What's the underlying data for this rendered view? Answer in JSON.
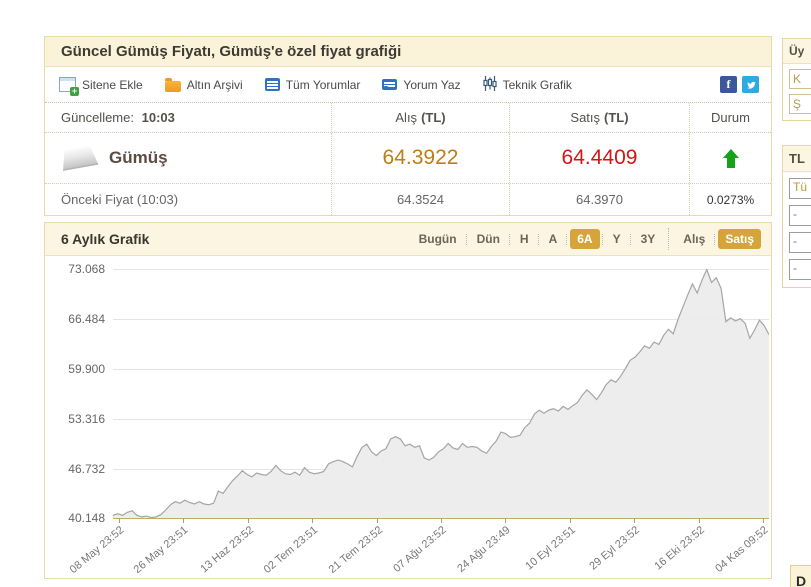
{
  "header": {
    "title": "Güncel Gümüş Fiyatı, Gümüş'e özel fiyat grafiği"
  },
  "toolbar": {
    "items": [
      {
        "label": "Sitene Ekle",
        "icon": "add-to-site-icon"
      },
      {
        "label": "Altın Arşivi",
        "icon": "gold-archive-icon"
      },
      {
        "label": "Tüm Yorumlar",
        "icon": "all-comments-icon"
      },
      {
        "label": "Yorum Yaz",
        "icon": "write-comment-icon"
      },
      {
        "label": "Teknik Grafik",
        "icon": "technical-chart-icon"
      }
    ],
    "social": [
      "facebook",
      "twitter"
    ],
    "facebook_glyph": "f"
  },
  "price_table": {
    "update_label": "Güncelleme:",
    "update_time": "10:03",
    "columns": {
      "buy": "Alış",
      "sell": "Satış",
      "unit": "(TL)",
      "status": "Durum"
    },
    "instrument": "Gümüş",
    "buy": "64.3922",
    "sell": "64.4409",
    "prev_label": "Önceki Fiyat (10:03)",
    "prev_buy": "64.3524",
    "prev_sell": "64.3970",
    "change_percent": "0.0273%",
    "direction": "up"
  },
  "chart": {
    "title": "6 Aylık Grafik",
    "tabs": [
      {
        "label": "Bugün",
        "active": false
      },
      {
        "label": "Dün",
        "active": false
      },
      {
        "label": "H",
        "active": false
      },
      {
        "label": "A",
        "active": false
      },
      {
        "label": "6A",
        "active": true
      },
      {
        "label": "Y",
        "active": false
      },
      {
        "label": "3Y",
        "active": false
      },
      {
        "label": "Alış",
        "active": false
      },
      {
        "label": "Satış",
        "active": true
      }
    ]
  },
  "chart_data": {
    "type": "area",
    "title": "6 Aylık Grafik",
    "series_name": "Satış",
    "grid": true,
    "ylim": [
      40.148,
      73.068
    ],
    "y_ticks": [
      "73.068",
      "66.484",
      "59.900",
      "53.316",
      "46.732",
      "40.148"
    ],
    "x_labels": [
      "08 May 23:52",
      "26 May 23:51",
      "13 Haz 23:52",
      "02 Tem 23:51",
      "21 Tem 23:52",
      "07 Ağu 23:52",
      "24 Ağu 23:49",
      "10 Eyl 23:51",
      "29 Eyl 23:52",
      "16 Eki 23:52",
      "04 Kas 09:52"
    ],
    "values": [
      40.5,
      40.7,
      40.5,
      40.9,
      41.1,
      40.5,
      40.3,
      40.4,
      40.2,
      40.3,
      40.6,
      41.2,
      41.9,
      42.3,
      42.1,
      42.5,
      42.2,
      42.0,
      42.3,
      42.0,
      41.9,
      42.1,
      43.7,
      43.4,
      44.3,
      45.1,
      45.7,
      46.4,
      45.9,
      45.6,
      46.1,
      45.9,
      45.8,
      46.3,
      47.1,
      46.4,
      46.0,
      45.9,
      46.2,
      45.8,
      46.8,
      46.2,
      46.0,
      46.1,
      46.3,
      47.3,
      47.6,
      47.8,
      47.6,
      47.3,
      46.9,
      48.3,
      49.5,
      49.9,
      48.9,
      48.4,
      49.0,
      49.3,
      50.6,
      50.9,
      50.6,
      49.7,
      49.9,
      49.5,
      49.7,
      48.1,
      47.8,
      48.2,
      48.9,
      49.3,
      50.0,
      49.4,
      49.2,
      50.0,
      49.5,
      49.6,
      49.5,
      49.0,
      48.7,
      49.6,
      50.3,
      51.5,
      51.3,
      50.8,
      50.9,
      51.1,
      52.1,
      52.7,
      53.9,
      54.4,
      54.0,
      54.4,
      54.6,
      54.3,
      54.9,
      54.5,
      55.0,
      55.4,
      56.4,
      57.1,
      56.5,
      55.8,
      56.7,
      57.8,
      58.4,
      58.1,
      58.9,
      59.9,
      61.0,
      61.4,
      62.1,
      62.9,
      62.6,
      63.4,
      63.1,
      64.3,
      65.1,
      64.5,
      66.4,
      68.0,
      69.6,
      71.1,
      69.9,
      71.6,
      73.0,
      71.3,
      71.9,
      70.5,
      66.1,
      66.6,
      66.2,
      66.5,
      65.9,
      63.9,
      65.0,
      66.3,
      65.6,
      64.4
    ],
    "line_color": "#a5a5a5",
    "fill_color": "#ebebeb"
  },
  "sidebar": {
    "login_title": "Üy",
    "login_user_placeholder": "K",
    "login_pass_placeholder": "Ş",
    "converter_title": "TL",
    "converter_select": "Tü",
    "converter_rows": [
      "-",
      "-",
      "-"
    ],
    "bottom_title": "D"
  },
  "colors": {
    "panel_border": "#e7dbaa",
    "panel_header_bg": "#faf3da",
    "buy_value": "#bf7d15",
    "sell_value": "#d01716",
    "up_green": "#15a31a",
    "active_tab_gold": "#d5a53b",
    "axis_tan": "#c2ab6e"
  }
}
